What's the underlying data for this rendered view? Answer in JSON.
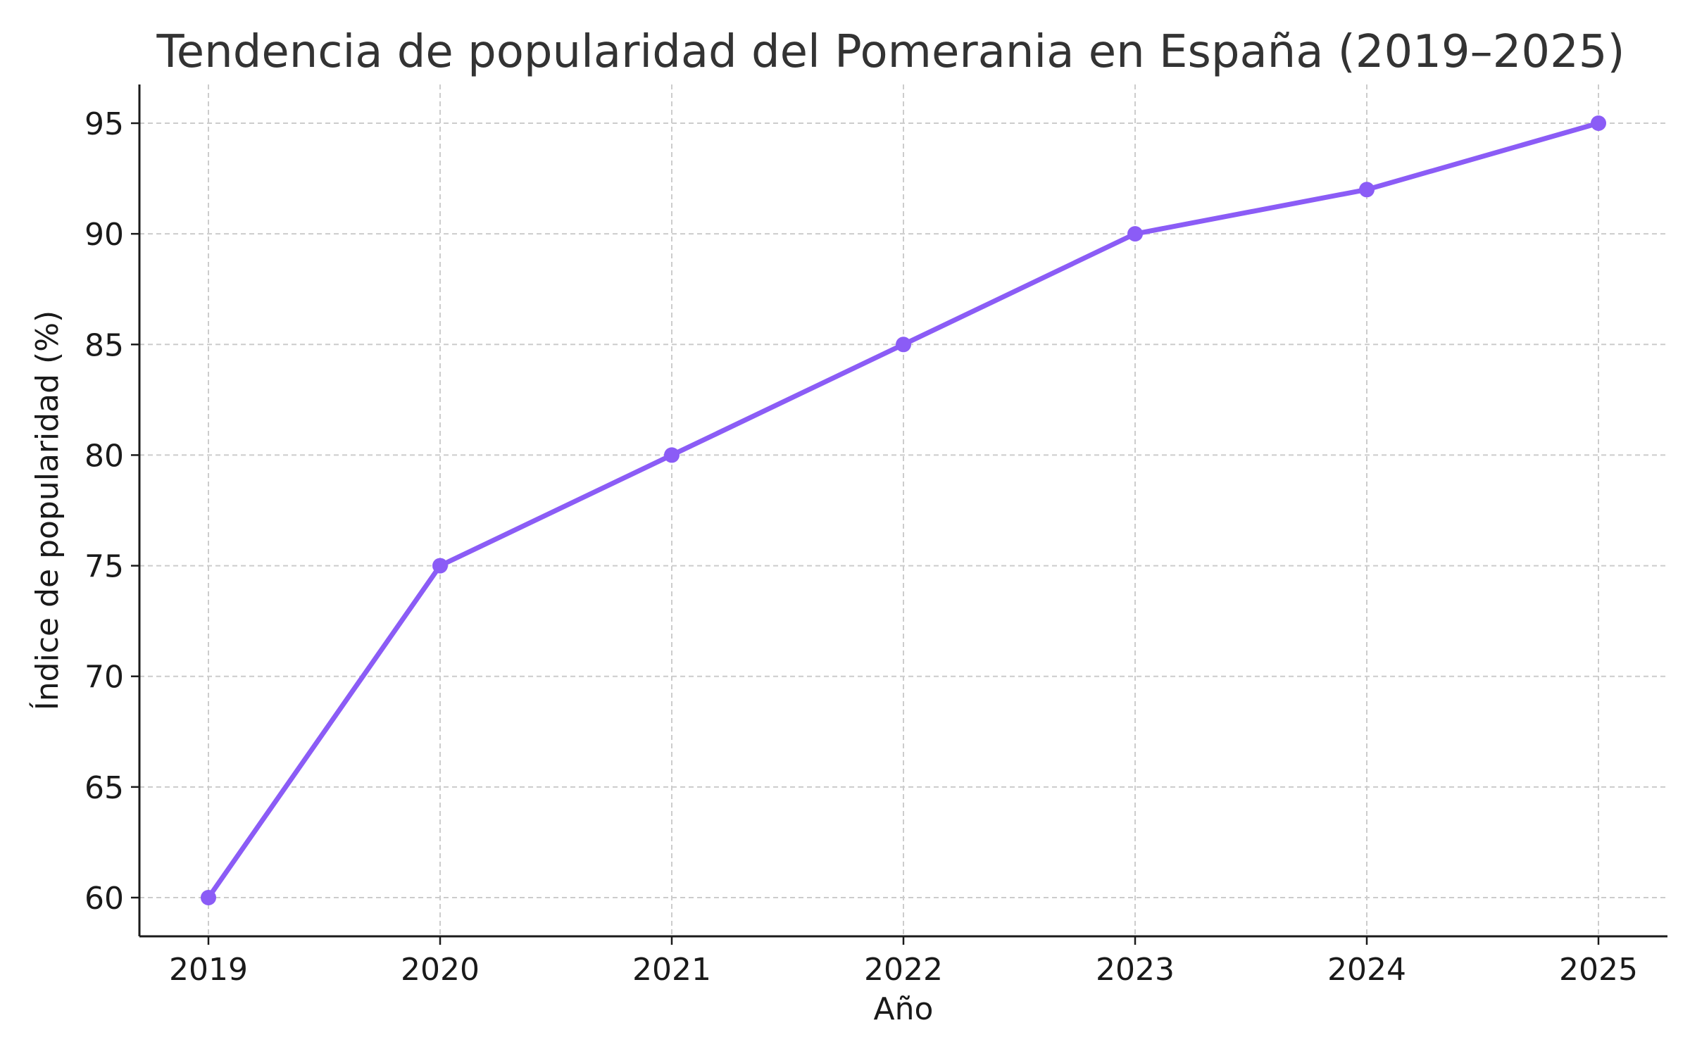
{
  "chart_data": {
    "type": "line",
    "title": "Tendencia de popularidad del Pomerania en España (2019–2025)",
    "xlabel": "Año",
    "ylabel": "Índice de popularidad (%)",
    "x": [
      "2019",
      "2020",
      "2021",
      "2022",
      "2023",
      "2024",
      "2025"
    ],
    "series": [
      {
        "values": [
          60,
          75,
          80,
          85,
          90,
          92,
          95
        ]
      }
    ],
    "yticks": [
      60,
      65,
      70,
      75,
      80,
      85,
      90,
      95
    ],
    "ylim": [
      58.25,
      96.75
    ],
    "grid": true,
    "line_color": "#8b5cf6",
    "legend": "none"
  }
}
